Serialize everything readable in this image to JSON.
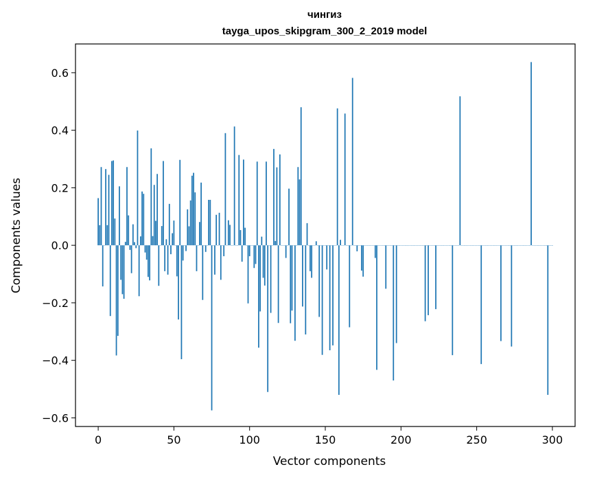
{
  "chart_data": {
    "type": "bar",
    "title": "чингиз",
    "subtitle": "tayga_upos_skipgram_300_2_2019 model",
    "xlabel": "Vector components",
    "ylabel": "Components values",
    "xlim": [
      -15,
      315
    ],
    "ylim": [
      -0.63,
      0.7
    ],
    "xticks": [
      0,
      50,
      100,
      150,
      200,
      250,
      300
    ],
    "yticks": [
      -0.6,
      -0.4,
      -0.2,
      0.0,
      0.2,
      0.4,
      0.6
    ],
    "ytick_labels": [
      "−0.6",
      "−0.4",
      "−0.2",
      "0.0",
      "0.2",
      "0.4",
      "0.6"
    ],
    "grid": false,
    "bar_color": "#1f77b4",
    "x_start": 0,
    "values": [
      0.164,
      0.07,
      0.272,
      -0.143,
      0.0,
      0.265,
      0.07,
      0.245,
      -0.246,
      0.293,
      0.295,
      0.093,
      -0.383,
      -0.315,
      0.205,
      -0.12,
      -0.17,
      -0.186,
      0.012,
      0.272,
      0.104,
      -0.016,
      -0.097,
      0.073,
      0.011,
      -0.01,
      0.399,
      -0.177,
      0.031,
      0.187,
      0.179,
      -0.025,
      -0.05,
      -0.11,
      -0.122,
      0.337,
      0.032,
      0.21,
      0.085,
      0.248,
      -0.141,
      0.0,
      0.067,
      0.293,
      -0.09,
      0.021,
      -0.102,
      0.144,
      -0.031,
      0.042,
      0.086,
      0.0,
      -0.108,
      -0.258,
      0.297,
      -0.396,
      -0.053,
      0.0,
      -0.02,
      0.125,
      0.066,
      0.156,
      0.242,
      0.252,
      0.184,
      -0.09,
      0.0,
      0.081,
      0.218,
      -0.19,
      0.0,
      -0.023,
      0.0,
      0.158,
      0.158,
      -0.574,
      0.0,
      -0.102,
      0.106,
      0.0,
      0.113,
      -0.12,
      0.0,
      -0.038,
      0.39,
      0.0,
      0.087,
      0.071,
      0.0,
      0.0,
      0.413,
      0.0,
      0.0,
      0.314,
      0.053,
      -0.057,
      0.298,
      0.061,
      0.0,
      -0.202,
      -0.038,
      0.0,
      0.0,
      -0.079,
      -0.065,
      0.291,
      -0.356,
      -0.23,
      0.03,
      -0.113,
      -0.14,
      0.291,
      -0.51,
      0.0,
      -0.235,
      0.0,
      0.335,
      0.015,
      0.271,
      -0.27,
      0.316,
      0.0,
      0.0,
      0.0,
      -0.044,
      0.0,
      0.197,
      -0.271,
      -0.227,
      0.0,
      -0.332,
      0.0,
      0.272,
      0.229,
      0.48,
      -0.213,
      0.0,
      -0.31,
      0.077,
      0.0,
      -0.09,
      -0.113,
      0.0,
      0.0,
      0.014,
      0.0,
      -0.249,
      0.0,
      -0.381,
      0.0,
      0.0,
      -0.084,
      0.0,
      -0.365,
      0.0,
      -0.348,
      0.0,
      0.0,
      0.476,
      -0.52,
      0.019,
      0.0,
      0.0,
      0.458,
      0.0,
      0.0,
      -0.285,
      0.0,
      0.582,
      0.0,
      0.0,
      -0.021,
      0.0,
      0.0,
      -0.088,
      -0.109,
      0.0,
      0.0,
      0.0,
      0.0,
      0.0,
      0.0,
      0.0,
      -0.044,
      -0.433,
      0.0,
      0.0,
      0.0,
      0.0,
      0.0,
      -0.151,
      0.0,
      0.0,
      0.0,
      0.0,
      -0.47,
      0.0,
      -0.34,
      0.0,
      0.0,
      0.0,
      0.0,
      0.0,
      0.0,
      0.0,
      0.0,
      0.0,
      0.0,
      0.0,
      0.0,
      0.0,
      0.0,
      0.0,
      0.0,
      0.0,
      0.0,
      -0.264,
      0.0,
      -0.243,
      0.0,
      0.0,
      0.0,
      0.0,
      -0.222,
      0.0,
      0.0,
      0.0,
      0.0,
      0.0,
      0.0,
      0.0,
      0.0,
      0.0,
      0.0,
      -0.382,
      0.0,
      0.0,
      0.0,
      0.0,
      0.518,
      0.0,
      0.0,
      0.0,
      0.0,
      0.0,
      0.0,
      0.0,
      0.0,
      0.0,
      0.0,
      0.0,
      0.0,
      0.0,
      -0.413,
      0.0,
      0.0,
      0.0,
      0.0,
      0.0,
      0.0,
      0.0,
      0.0,
      0.0,
      0.0,
      0.0,
      0.0,
      -0.333,
      0.0,
      0.0,
      0.0,
      0.0,
      0.0,
      0.0,
      -0.352,
      0.0,
      0.0,
      0.0,
      0.0,
      0.0,
      0.0,
      0.0,
      0.0,
      0.0,
      0.0,
      0.0,
      0.0,
      0.637,
      0.0,
      0.0,
      0.0,
      0.0,
      0.0,
      0.0,
      0.0,
      0.0,
      0.0,
      0.0,
      -0.52,
      0.0,
      0.0,
      0.0
    ]
  }
}
